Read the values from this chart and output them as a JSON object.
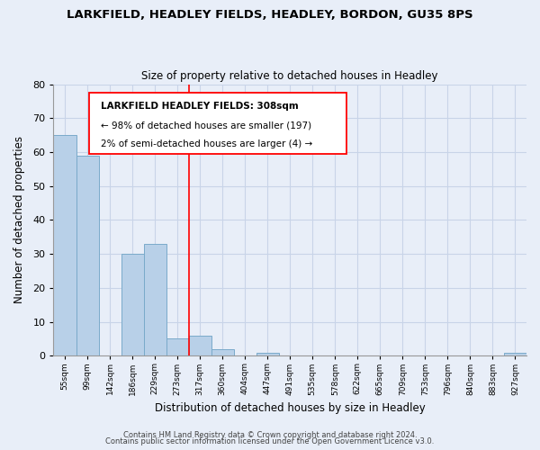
{
  "title": "LARKFIELD, HEADLEY FIELDS, HEADLEY, BORDON, GU35 8PS",
  "subtitle": "Size of property relative to detached houses in Headley",
  "xlabel": "Distribution of detached houses by size in Headley",
  "ylabel": "Number of detached properties",
  "bar_values": [
    65,
    59,
    0,
    30,
    33,
    5,
    6,
    2,
    0,
    1,
    0,
    0,
    0,
    0,
    0,
    0,
    0,
    0,
    0,
    0,
    1
  ],
  "x_labels": [
    "55sqm",
    "99sqm",
    "142sqm",
    "186sqm",
    "229sqm",
    "273sqm",
    "317sqm",
    "360sqm",
    "404sqm",
    "447sqm",
    "491sqm",
    "535sqm",
    "578sqm",
    "622sqm",
    "665sqm",
    "709sqm",
    "753sqm",
    "796sqm",
    "840sqm",
    "883sqm",
    "927sqm"
  ],
  "bar_color": "#b8d0e8",
  "bar_edge_color": "#7aaaca",
  "red_line_index": 6,
  "ylim": [
    0,
    80
  ],
  "yticks": [
    0,
    10,
    20,
    30,
    40,
    50,
    60,
    70,
    80
  ],
  "annotation_title": "LARKFIELD HEADLEY FIELDS: 308sqm",
  "annotation_line1": "← 98% of detached houses are smaller (197)",
  "annotation_line2": "2% of semi-detached houses are larger (4) →",
  "footer1": "Contains HM Land Registry data © Crown copyright and database right 2024.",
  "footer2": "Contains public sector information licensed under the Open Government Licence v3.0.",
  "background_color": "#e8eef8",
  "plot_bg_color": "#e8eef8",
  "grid_color": "#c8d4e8"
}
